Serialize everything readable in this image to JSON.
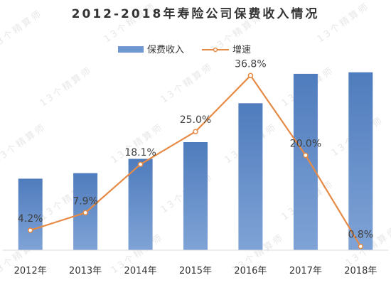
{
  "chart_data": {
    "type": "bar+line",
    "title": "2012-2018年寿险公司保费收入情况",
    "categories": [
      "2012年",
      "2013年",
      "2014年",
      "2015年",
      "2016年",
      "2017年",
      "2018年"
    ],
    "series": [
      {
        "name": "保费收入",
        "type": "bar",
        "values": [
          0.9,
          0.97,
          1.15,
          1.36,
          1.85,
          2.22,
          2.24
        ]
      },
      {
        "name": "增速",
        "type": "line",
        "values": [
          4.2,
          7.9,
          18.1,
          25.0,
          36.8,
          20.0,
          0.8
        ],
        "labels": [
          "4.2%",
          "7.9%",
          "18.1%",
          "25.0%",
          "36.8%",
          "20.0%",
          "0.8%"
        ]
      }
    ],
    "bar_ylim": [
      0,
      2.3
    ],
    "line_ylim": [
      0,
      38.5
    ],
    "legend": {
      "placement": "top-center"
    },
    "grid": false,
    "colors": {
      "bar": "#6f97cf",
      "bar_dark": "#4f7cbd",
      "line": "#e68a45"
    },
    "watermark": "13个精算师"
  }
}
